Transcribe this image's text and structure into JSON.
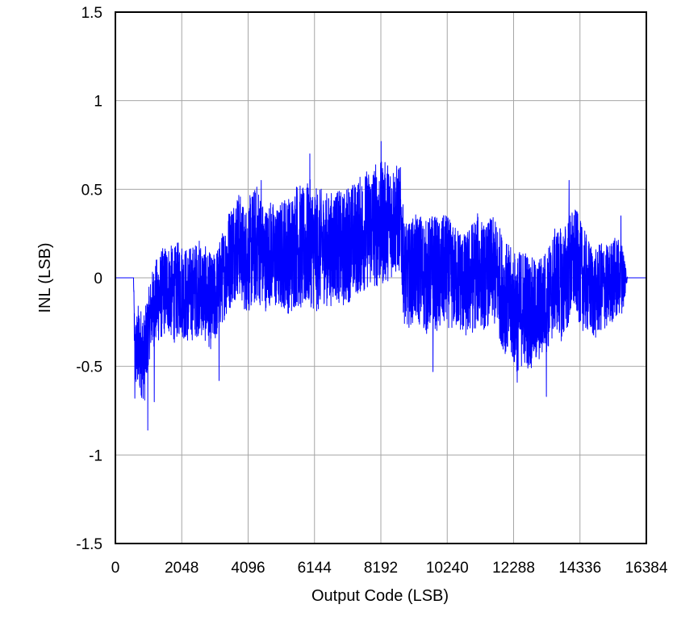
{
  "chart_data": {
    "type": "line",
    "title": "",
    "xlabel": "Output Code (LSB)",
    "ylabel": "INL (LSB)",
    "xlim": [
      0,
      16384
    ],
    "ylim": [
      -1.5,
      1.5
    ],
    "xticks": [
      0,
      2048,
      4096,
      6144,
      8192,
      10240,
      12288,
      14336,
      16384
    ],
    "xtick_labels": [
      "0",
      "2048",
      "4096",
      "6144",
      "8192",
      "10240",
      "12288",
      "14336",
      "16384"
    ],
    "yticks": [
      -1.5,
      -1,
      -0.5,
      0,
      0.5,
      1,
      1.5
    ],
    "ytick_labels": [
      "-1.5",
      "-1",
      "-0.5",
      "0",
      "0.5",
      "1",
      "1.5"
    ],
    "grid": true,
    "legend": "none",
    "series_color": "#0000ff",
    "series": [
      {
        "x": [
          0,
          560,
          600,
          640,
          700,
          800,
          900,
          1000,
          1100,
          1200,
          1400,
          1600,
          1800,
          2000,
          2200,
          2400,
          2600,
          2800,
          3000,
          3200,
          3400,
          3500,
          3600,
          3800,
          4000,
          4200,
          4400,
          4600,
          4800,
          5000,
          5200,
          5400,
          5600,
          5800,
          6000,
          6200,
          6400,
          6600,
          6800,
          7000,
          7200,
          7400,
          7600,
          7800,
          8000,
          8200,
          8400,
          8600,
          8800,
          8900,
          9000,
          9200,
          9400,
          9600,
          9800,
          10000,
          10200,
          10400,
          10600,
          10800,
          11000,
          11200,
          11400,
          11600,
          11800,
          12000,
          12200,
          12400,
          12600,
          12800,
          13000,
          13200,
          13400,
          13600,
          13800,
          14000,
          14200,
          14400,
          14600,
          14800,
          15000,
          15200,
          15400,
          15600,
          15700,
          15800,
          16384
        ],
        "mean": [
          0,
          0,
          -0.45,
          -0.42,
          -0.4,
          -0.42,
          -0.45,
          -0.3,
          -0.2,
          -0.15,
          -0.1,
          -0.05,
          -0.1,
          -0.05,
          -0.1,
          -0.08,
          -0.05,
          -0.1,
          -0.15,
          -0.05,
          0.05,
          0.1,
          0.15,
          0.2,
          0.1,
          0.15,
          0.2,
          0.1,
          0.15,
          0.1,
          0.15,
          0.12,
          0.2,
          0.15,
          0.2,
          0.15,
          0.18,
          0.15,
          0.2,
          0.15,
          0.2,
          0.22,
          0.25,
          0.28,
          0.3,
          0.3,
          0.32,
          0.33,
          0.33,
          0.05,
          0.0,
          0.05,
          0.05,
          0.0,
          0.05,
          0.0,
          0.05,
          0.0,
          0.0,
          -0.05,
          0.0,
          0.05,
          0.0,
          0.05,
          0.0,
          -0.1,
          -0.15,
          -0.2,
          -0.15,
          -0.2,
          -0.2,
          -0.15,
          -0.1,
          0.0,
          -0.05,
          0.05,
          0.1,
          0.0,
          -0.05,
          -0.1,
          -0.05,
          -0.05,
          0.0,
          0.0,
          0.0,
          0.0,
          0.0
        ],
        "spread": [
          0,
          0,
          0.25,
          0.25,
          0.3,
          0.3,
          0.3,
          0.25,
          0.25,
          0.28,
          0.3,
          0.3,
          0.32,
          0.32,
          0.32,
          0.32,
          0.32,
          0.32,
          0.32,
          0.3,
          0.32,
          0.35,
          0.35,
          0.35,
          0.35,
          0.4,
          0.4,
          0.35,
          0.35,
          0.35,
          0.38,
          0.4,
          0.42,
          0.42,
          0.42,
          0.42,
          0.38,
          0.38,
          0.38,
          0.38,
          0.4,
          0.38,
          0.4,
          0.4,
          0.42,
          0.42,
          0.4,
          0.38,
          0.35,
          0.35,
          0.35,
          0.35,
          0.38,
          0.38,
          0.38,
          0.38,
          0.38,
          0.35,
          0.35,
          0.35,
          0.38,
          0.38,
          0.35,
          0.35,
          0.38,
          0.38,
          0.38,
          0.4,
          0.4,
          0.38,
          0.35,
          0.35,
          0.35,
          0.35,
          0.38,
          0.38,
          0.35,
          0.35,
          0.32,
          0.3,
          0.3,
          0.28,
          0.28,
          0.25,
          0.2,
          0,
          0
        ],
        "extremes": [
          [
            600,
            -0.68
          ],
          [
            1000,
            -0.86
          ],
          [
            1200,
            -0.7
          ],
          [
            3200,
            -0.58
          ],
          [
            4500,
            0.55
          ],
          [
            6000,
            0.7
          ],
          [
            8200,
            0.77
          ],
          [
            9800,
            -0.53
          ],
          [
            12400,
            -0.59
          ],
          [
            13300,
            -0.67
          ],
          [
            14000,
            0.55
          ],
          [
            15600,
            0.35
          ]
        ]
      }
    ]
  }
}
